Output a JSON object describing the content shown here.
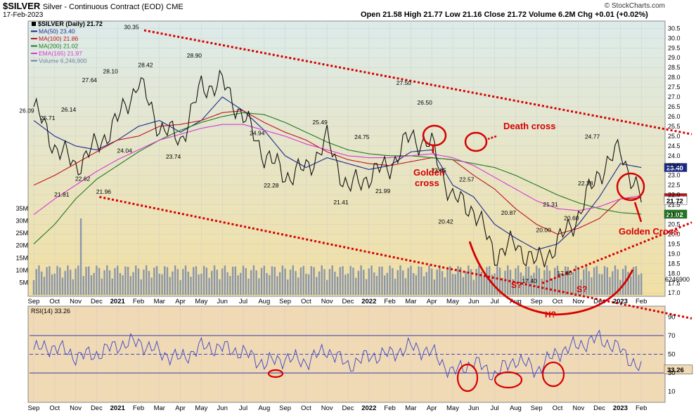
{
  "header": {
    "symbol": "$SILVER",
    "name": "Silver - Continuous Contract (EOD)",
    "exchange": "CME",
    "date": "17-Feb-2023",
    "ohlc": "Open 21.58  High 21.77  Low 21.16  Close 21.72  Volume 6.2M  Chg +0.01 (+0.02%)",
    "source": "© StockCharts.com"
  },
  "colors": {
    "price_bg_top": "#dcebea",
    "price_bg_bottom": "#f2dfa2",
    "rsi_bg": "#f0d9b5",
    "ma50": "#1a2a8c",
    "ma100": "#c0141c",
    "ma200": "#1f7a1f",
    "ema165": "#d63ad6",
    "price": "#111111",
    "volume": "#8a96aa",
    "rsi": "#3a44c8",
    "annotation": "#d60000"
  },
  "chart_data": {
    "type": "line",
    "title": "$SILVER Silver - Continuous Contract (EOD) CME",
    "x": [
      "Sep 2020",
      "Oct 2020",
      "Nov 2020",
      "Dec 2020",
      "Jan 2021",
      "Feb 2021",
      "Mar 2021",
      "Apr 2021",
      "May 2021",
      "Jun 2021",
      "Jul 2021",
      "Aug 2021",
      "Sep 2021",
      "Oct 2021",
      "Nov 2021",
      "Dec 2021",
      "Jan 2022",
      "Feb 2022",
      "Mar 2022",
      "Apr 2022",
      "May 2022",
      "Jun 2022",
      "Jul 2022",
      "Aug 2022",
      "Sep 2022",
      "Oct 2022",
      "Nov 2022",
      "Dec 2022",
      "Jan 2023",
      "Feb 2023"
    ],
    "x_tick_labels": [
      "Sep",
      "Oct",
      "Nov",
      "Dec",
      "2021",
      "Feb",
      "Mar",
      "Apr",
      "May",
      "Jun",
      "Jul",
      "Aug",
      "Sep",
      "Oct",
      "Nov",
      "Dec",
      "2022",
      "Feb",
      "Mar",
      "Apr",
      "May",
      "Jun",
      "Jul",
      "Aug",
      "Sep",
      "Oct",
      "Nov",
      "Dec",
      "2023",
      "Feb"
    ],
    "ylim": [
      16.9,
      30.8
    ],
    "y_ticks": [
      17.0,
      17.5,
      18.0,
      18.5,
      19.0,
      19.5,
      20.0,
      20.5,
      21.0,
      21.5,
      22.0,
      22.5,
      23.0,
      23.5,
      24.0,
      24.5,
      25.0,
      25.5,
      26.0,
      26.5,
      27.0,
      27.5,
      28.0,
      28.5,
      29.0,
      29.5,
      30.0,
      30.5
    ],
    "series": [
      {
        "name": "$SILVER (Daily) 21.72",
        "values": [
          26.5,
          24.5,
          23.5,
          24.5,
          25.8,
          27.8,
          25.5,
          24.8,
          27.5,
          27.7,
          26.0,
          24.1,
          23.0,
          23.3,
          24.8,
          22.3,
          23.0,
          23.5,
          25.0,
          24.5,
          21.8,
          21.3,
          19.0,
          19.5,
          18.5,
          19.5,
          21.0,
          23.2,
          24.3,
          21.72
        ]
      },
      {
        "name": "MA(50) 23.40",
        "values": [
          25.8,
          25.0,
          24.5,
          24.3,
          24.8,
          25.5,
          25.8,
          25.2,
          25.8,
          27.0,
          26.3,
          25.3,
          24.0,
          23.4,
          23.9,
          23.6,
          23.3,
          23.5,
          24.2,
          24.3,
          22.5,
          21.9,
          20.5,
          19.8,
          19.2,
          19.5,
          20.5,
          21.9,
          23.6,
          23.4
        ]
      },
      {
        "name": "MA(100) 21.86",
        "values": [
          22.5,
          23.0,
          23.6,
          24.2,
          24.8,
          25.0,
          25.5,
          25.6,
          25.8,
          26.2,
          26.3,
          25.7,
          25.2,
          24.8,
          24.2,
          23.8,
          23.6,
          23.5,
          23.7,
          23.9,
          23.8,
          23.0,
          22.3,
          21.3,
          20.5,
          20.0,
          20.3,
          20.8,
          21.8,
          21.86
        ]
      },
      {
        "name": "MA(200) 21.02",
        "values": [
          19.5,
          20.5,
          21.8,
          22.8,
          23.5,
          24.2,
          24.8,
          25.3,
          25.7,
          26.0,
          26.2,
          26.1,
          25.7,
          25.2,
          24.7,
          24.3,
          24.1,
          24.0,
          24.0,
          23.9,
          23.8,
          23.6,
          23.4,
          23.0,
          22.5,
          22.0,
          21.6,
          21.3,
          21.1,
          21.02
        ]
      },
      {
        "name": "EMA(165) 21.97",
        "values": [
          21.0,
          21.8,
          22.5,
          23.2,
          23.8,
          24.3,
          24.8,
          25.1,
          25.4,
          25.6,
          25.6,
          25.3,
          25.0,
          24.6,
          24.3,
          24.0,
          23.9,
          23.9,
          24.0,
          24.1,
          23.9,
          23.5,
          22.9,
          22.3,
          21.7,
          21.3,
          21.2,
          21.4,
          21.8,
          21.97
        ]
      }
    ],
    "volume": {
      "name": "Volume 6,246,900",
      "unit": "M",
      "y_ticks_label": [
        "5M",
        "10M",
        "15M",
        "20M",
        "25M",
        "30M",
        "35M"
      ],
      "y_ticks": [
        5,
        10,
        15,
        20,
        25,
        30,
        35
      ],
      "current_label": "6246900"
    },
    "price_labels": [
      {
        "x": "Sep 2020",
        "y": 26.09,
        "text": "26.09"
      },
      {
        "x": "Oct 2020",
        "y": 25.71,
        "text": "25.71"
      },
      {
        "x": "Oct 2020",
        "y": 21.81,
        "text": "21.81"
      },
      {
        "x": "Nov 2020",
        "y": 26.14,
        "text": "26.14"
      },
      {
        "x": "Nov 2020",
        "y": 22.62,
        "text": "22.62"
      },
      {
        "x": "Dec 2020",
        "y": 27.64,
        "text": "27.64"
      },
      {
        "x": "Dec 2020",
        "y": 21.96,
        "text": "21.96"
      },
      {
        "x": "Jan 2021",
        "y": 28.1,
        "text": "28.10"
      },
      {
        "x": "Jan 2021",
        "y": 24.04,
        "text": "24.04"
      },
      {
        "x": "Feb 2021",
        "y": 30.35,
        "text": "30.35"
      },
      {
        "x": "Feb 2021",
        "y": 28.42,
        "text": "28.42"
      },
      {
        "x": "Apr 2021",
        "y": 23.74,
        "text": "23.74"
      },
      {
        "x": "May 2021",
        "y": 28.9,
        "text": "28.90"
      },
      {
        "x": "Aug 2021",
        "y": 24.94,
        "text": "24.94"
      },
      {
        "x": "Aug 2021",
        "y": 22.28,
        "text": "22.28"
      },
      {
        "x": "Nov 2021",
        "y": 25.49,
        "text": "25.49"
      },
      {
        "x": "Dec 2021",
        "y": 21.41,
        "text": "21.41"
      },
      {
        "x": "Jan 2022",
        "y": 24.75,
        "text": "24.75"
      },
      {
        "x": "Feb 2022",
        "y": 21.99,
        "text": "21.99"
      },
      {
        "x": "Mar 2022",
        "y": 27.5,
        "text": "27.50"
      },
      {
        "x": "Apr 2022",
        "y": 26.5,
        "text": "26.50"
      },
      {
        "x": "Apr 2022",
        "y": 23.05,
        "text": "23.05"
      },
      {
        "x": "May 2022",
        "y": 20.42,
        "text": "20.42"
      },
      {
        "x": "Jun 2022",
        "y": 22.57,
        "text": "22.57"
      },
      {
        "x": "Aug 2022",
        "y": 20.87,
        "text": "20.87"
      },
      {
        "x": "Sep 2022",
        "y": 17.4,
        "text": "17.40"
      },
      {
        "x": "Sep 2022",
        "y": 20.0,
        "text": "20.00"
      },
      {
        "x": "Oct 2022",
        "y": 21.31,
        "text": "21.31"
      },
      {
        "x": "Oct 2022",
        "y": 17.8,
        "text": "17.80"
      },
      {
        "x": "Nov 2022",
        "y": 20.6,
        "text": "20.60"
      },
      {
        "x": "Nov 2022",
        "y": 22.38,
        "text": "22.38"
      },
      {
        "x": "Dec 2022",
        "y": 24.77,
        "text": "24.77"
      }
    ],
    "right_value_tags": [
      {
        "text": "23.40",
        "series": "MA(50)"
      },
      {
        "text": "21.86",
        "series": "MA(100)"
      },
      {
        "text": "21.72",
        "series": "$SILVER"
      },
      {
        "text": "21.02",
        "series": "MA(200)"
      }
    ],
    "annotations": {
      "golden_cross_1": "Golden cross",
      "death_cross": "Death cross",
      "golden_cross_2": "Golden Cross",
      "s_left": "S?",
      "s_right": "S?",
      "head": "H?"
    },
    "rsi": {
      "name": "RSI(14) 33.26",
      "ylim": [
        0,
        100
      ],
      "y_ticks": [
        10,
        30,
        50,
        70,
        90
      ],
      "levels": [
        30,
        50,
        70
      ],
      "current": 33.26,
      "values": [
        55,
        58,
        48,
        50,
        60,
        63,
        52,
        45,
        58,
        57,
        52,
        40,
        46,
        42,
        55,
        38,
        48,
        50,
        58,
        52,
        30,
        42,
        28,
        45,
        33,
        52,
        60,
        67,
        55,
        33
      ]
    },
    "grid": true,
    "legend_placement": "top-left"
  }
}
